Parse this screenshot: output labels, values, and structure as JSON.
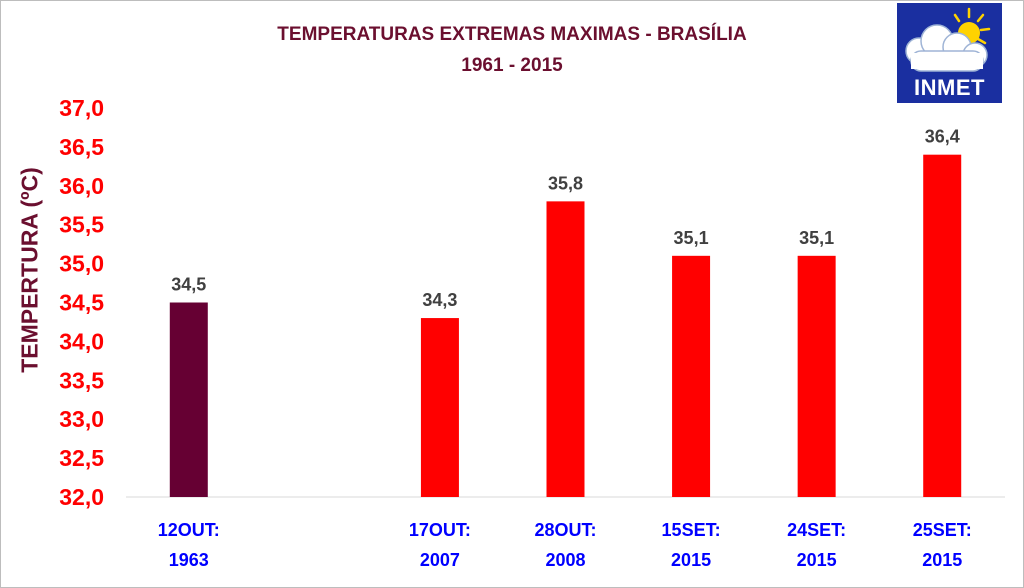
{
  "chart_data": {
    "type": "bar",
    "title": "TEMPERATURAS EXTREMAS MAXIMAS - BRASÍLIA",
    "subtitle": "1961 - 2015",
    "ylabel": "TEMPERTURA (ºC)",
    "xlabel": "",
    "ylim": [
      32.0,
      37.0
    ],
    "ytick_step": 0.5,
    "grid": false,
    "legend": "none",
    "categories": [
      [
        "12OUT:",
        "1963"
      ],
      [
        "17OUT:",
        "2007"
      ],
      [
        "28OUT:",
        "2008"
      ],
      [
        "15SET:",
        "2015"
      ],
      [
        "24SET:",
        "2015"
      ],
      [
        "25SET:",
        "2015"
      ]
    ],
    "values": [
      34.5,
      34.3,
      35.8,
      35.1,
      35.1,
      36.4
    ],
    "value_labels": [
      "34,5",
      "34,3",
      "35,8",
      "35,1",
      "35,1",
      "36,4"
    ],
    "bar_colors": [
      "#660033",
      "#ff0000",
      "#ff0000",
      "#ff0000",
      "#ff0000",
      "#ff0000"
    ],
    "colors": {
      "title": "#6b0f2f",
      "ytick": "#ff0000",
      "xtick": "#0000ff",
      "data_label": "#404040",
      "axis": "#d9d9d9"
    }
  },
  "logo": {
    "label": "INMET",
    "icon": "sun-cloud-icon",
    "background": "#1a2fa0"
  }
}
